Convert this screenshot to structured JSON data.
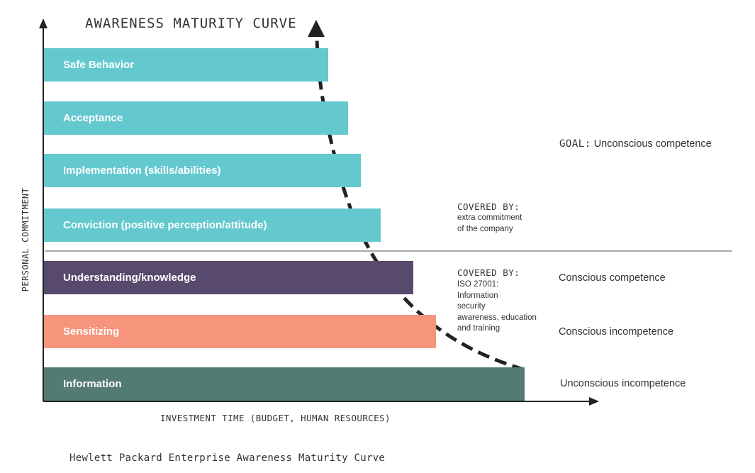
{
  "title": "AWARENESS MATURITY CURVE",
  "y_axis_label": "PERSONAL COMMITMENT",
  "x_axis_label": "INVESTMENT TIME (BUDGET, HUMAN RESOURCES)",
  "caption": "Hewlett Packard Enterprise Awareness Maturity Curve",
  "bars": [
    {
      "label": "Safe Behavior",
      "color": "#63c9cf"
    },
    {
      "label": "Acceptance",
      "color": "#63c9cf"
    },
    {
      "label": "Implementation (skills/abilities)",
      "color": "#63c9cf"
    },
    {
      "label": "Conviction (positive perception/attitude)",
      "color": "#63c9cf"
    },
    {
      "label": "Understanding/knowledge",
      "color": "#584a6d"
    },
    {
      "label": "Sensitizing",
      "color": "#f6957b"
    },
    {
      "label": "Information",
      "color": "#537b73"
    }
  ],
  "notes": {
    "company": {
      "heading": "COVERED BY:",
      "lines": [
        "extra commitment",
        "of the company"
      ]
    },
    "iso": {
      "heading": "COVERED BY:",
      "lines": [
        "ISO 27001:",
        "Information",
        "security",
        "awareness, education",
        "and training"
      ]
    }
  },
  "stages": {
    "goal_prefix": "GOAL:",
    "goal": "Unconscious competence",
    "conscious_competence": "Conscious competence",
    "conscious_incompetence": "Conscious incompetence",
    "unconscious_incompetence": "Unconscious incompetence"
  }
}
